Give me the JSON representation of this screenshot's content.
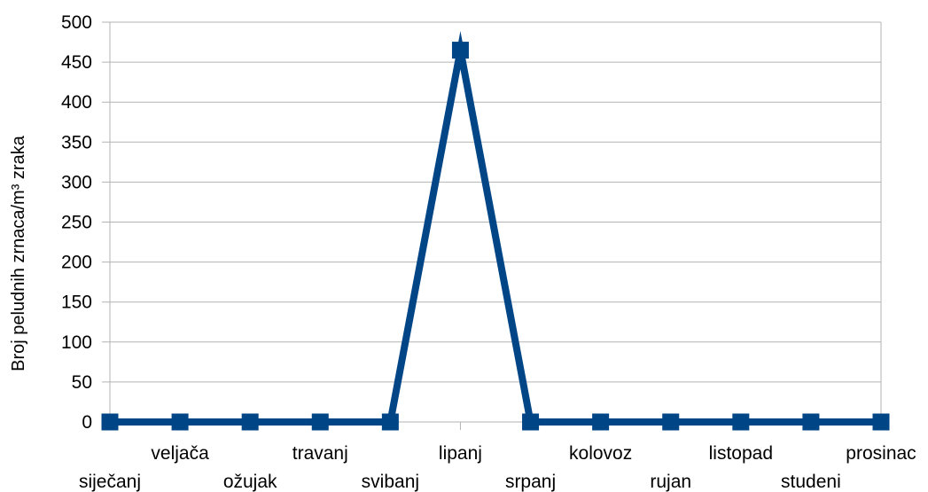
{
  "chart_data": {
    "type": "line",
    "title": "",
    "xlabel": "",
    "ylabel": "Broj peludnih zrnaca/m³ zraka",
    "categories": [
      "siječanj",
      "veljača",
      "ožujak",
      "travanj",
      "svibanj",
      "lipanj",
      "srpanj",
      "kolovoz",
      "rujan",
      "listopad",
      "studeni",
      "prosinac"
    ],
    "series": [
      {
        "values": [
          0,
          0,
          0,
          0,
          0,
          465,
          0,
          0,
          0,
          0,
          0,
          0
        ]
      }
    ],
    "ylim": [
      0,
      500
    ],
    "yticks": [
      0,
      50,
      100,
      150,
      200,
      250,
      300,
      350,
      400,
      450,
      500
    ],
    "grid": true,
    "legend": "none",
    "line_color": "#004586"
  }
}
